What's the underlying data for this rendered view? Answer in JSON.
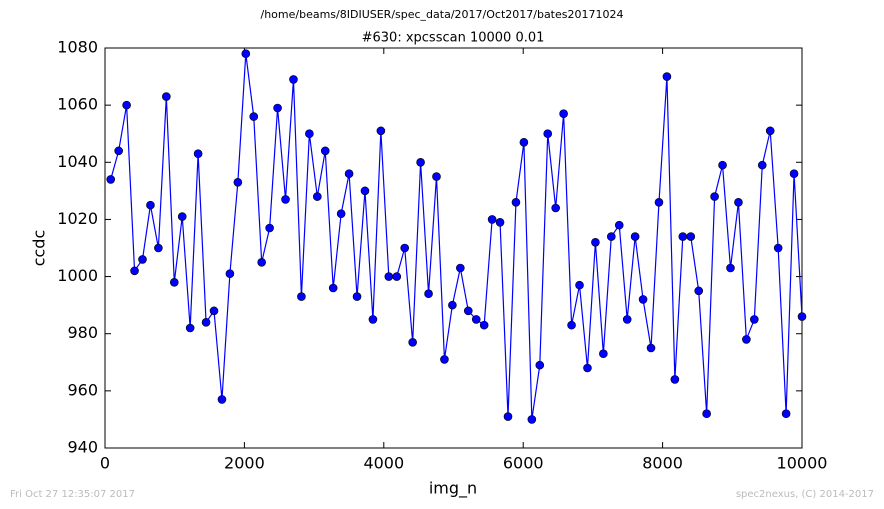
{
  "chart_data": {
    "type": "line",
    "suptitle": "/home/beams/8IDIUSER/spec_data/2017/Oct2017/bates20171024",
    "title": "#630: xpcsscan 10000 0.01",
    "x_label": "img_n",
    "y_label": "ccdc",
    "footer_left": "Fri Oct 27 12:35:07 2017",
    "footer_right": "spec2nexus, (C) 2014-2017",
    "x": [
      82,
      196,
      310,
      424,
      538,
      652,
      766,
      880,
      994,
      1108,
      1222,
      1336,
      1450,
      1564,
      1678,
      1792,
      1906,
      2020,
      2134,
      2248,
      2362,
      2476,
      2590,
      2704,
      2818,
      2932,
      3046,
      3160,
      3274,
      3388,
      3502,
      3616,
      3730,
      3844,
      3958,
      4072,
      4186,
      4300,
      4414,
      4528,
      4642,
      4756,
      4870,
      4984,
      5098,
      5212,
      5326,
      5440,
      5554,
      5668,
      5782,
      5896,
      6010,
      6124,
      6238,
      6352,
      6466,
      6580,
      6694,
      6808,
      6922,
      7036,
      7150,
      7264,
      7378,
      7492,
      7606,
      7720,
      7834,
      7948,
      8062,
      8176,
      8290,
      8404,
      8518,
      8632,
      8746,
      8860,
      8974,
      9088,
      9202,
      9316,
      9430,
      9544,
      9658,
      9772,
      9886,
      10000
    ],
    "series": [
      {
        "color": "#0000ff",
        "values": [
          1034,
          1044,
          1060,
          1002,
          1006,
          1025,
          1010,
          1063,
          998,
          1021,
          982,
          1043,
          984,
          988,
          957,
          1001,
          1033,
          1078,
          1056,
          1005,
          1017,
          1059,
          1027,
          1069,
          993,
          1050,
          1028,
          1044,
          996,
          1022,
          1036,
          993,
          1030,
          985,
          1051,
          1000,
          1000,
          1010,
          977,
          1040,
          994,
          1035,
          971,
          990,
          1003,
          988,
          985,
          983,
          1020,
          1019,
          951,
          1026,
          1047,
          950,
          969,
          1050,
          1024,
          1057,
          983,
          997,
          968,
          1012,
          973,
          1014,
          1018,
          985,
          1014,
          992,
          975,
          1026,
          1070,
          964,
          1014,
          1014,
          995,
          952,
          1028,
          1039,
          1003,
          1026,
          978,
          985,
          1039,
          1051,
          1010,
          952,
          1036,
          986
        ]
      }
    ],
    "xlim": [
      0,
      10000
    ],
    "ylim": [
      940,
      1080
    ],
    "xticks": [
      0,
      2000,
      4000,
      6000,
      8000,
      10000
    ],
    "yticks": [
      940,
      960,
      980,
      1000,
      1020,
      1040,
      1060,
      1080
    ]
  }
}
